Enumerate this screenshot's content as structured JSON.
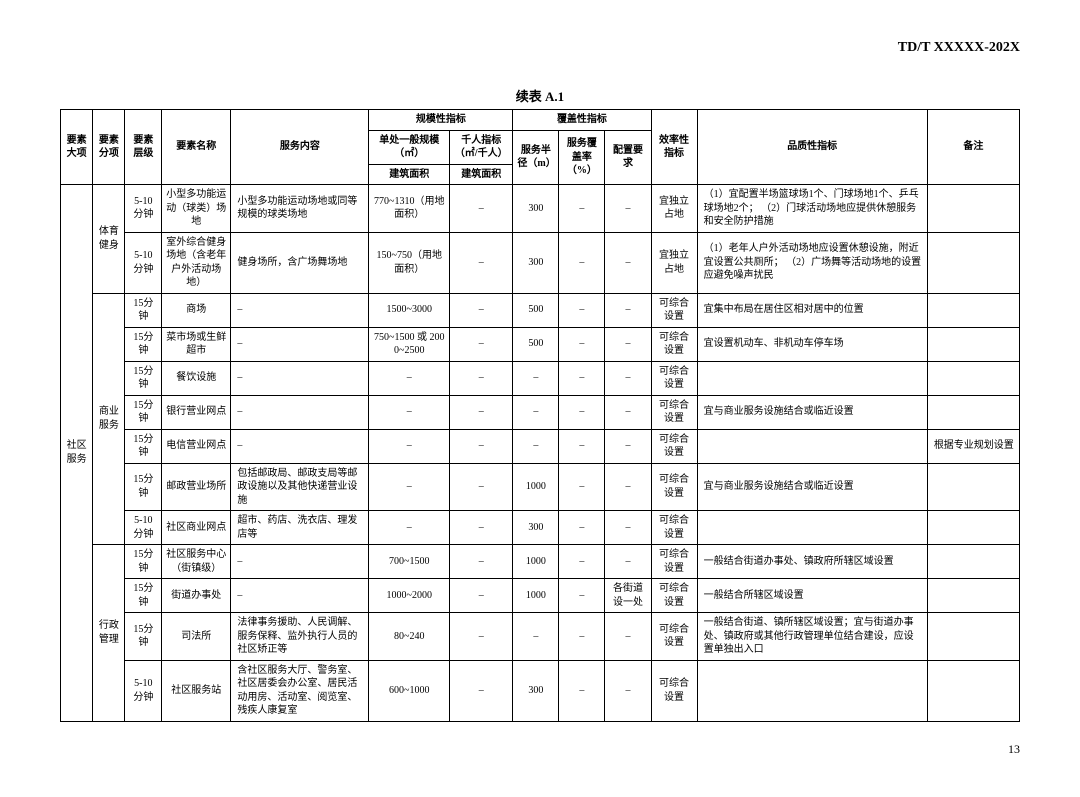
{
  "doc_code": "TD/T  XXXXX-202X",
  "table_title": "续表 A.1",
  "page_number": "13",
  "headers": {
    "major": "要素大项",
    "sub": "要素分项",
    "level": "要素层级",
    "name": "要素名称",
    "service": "服务内容",
    "scale_group": "规模性指标",
    "cover_group": "覆盖性指标",
    "scale": "单处一般规模（㎡）",
    "thou": "千人指标（㎡/千人）",
    "build1": "建筑面积",
    "build2": "建筑面积",
    "radius": "服务半径（m）",
    "rate": "服务覆盖率（%）",
    "config": "配置要求",
    "eff": "效率性指标",
    "qual": "品质性指标",
    "note": "备注"
  },
  "major_label": "社区服务",
  "groups": [
    {
      "sub": "体育健身",
      "rows": [
        {
          "level": "5-10分钟",
          "name": "小型多功能运动（球类）场地",
          "service": "小型多功能运动场地或同等规模的球类场地",
          "scale": "770~1310（用地面积）",
          "thou": "–",
          "radius": "300",
          "rate": "–",
          "config": "–",
          "eff": "宜独立占地",
          "qual": "（1）宜配置半场篮球场1个、门球场地1个、乒乓球场地2个；\n（2）门球活动场地应提供休憩服务和安全防护措施",
          "note": ""
        },
        {
          "level": "5-10分钟",
          "name": "室外综合健身场地（含老年户外活动场地）",
          "service": "健身场所，含广场舞场地",
          "scale": "150~750（用地面积）",
          "thou": "–",
          "radius": "300",
          "rate": "–",
          "config": "–",
          "eff": "宜独立占地",
          "qual": "（1）老年人户外活动场地应设置休憩设施，附近宜设置公共厕所；\n（2）广场舞等活动场地的设置应避免噪声扰民",
          "note": ""
        }
      ]
    },
    {
      "sub": "商业服务",
      "rows": [
        {
          "level": "15分钟",
          "name": "商场",
          "service": "–",
          "scale": "1500~3000",
          "thou": "–",
          "radius": "500",
          "rate": "–",
          "config": "–",
          "eff": "可综合设置",
          "qual": "宜集中布局在居住区相对居中的位置",
          "note": ""
        },
        {
          "level": "15分钟",
          "name": "菜市场或生鲜超市",
          "service": "–",
          "scale": "750~1500 或 2000~2500",
          "thou": "–",
          "radius": "500",
          "rate": "–",
          "config": "–",
          "eff": "可综合设置",
          "qual": "宜设置机动车、非机动车停车场",
          "note": ""
        },
        {
          "level": "15分钟",
          "name": "餐饮设施",
          "service": "–",
          "scale": "–",
          "thou": "–",
          "radius": "–",
          "rate": "–",
          "config": "–",
          "eff": "可综合设置",
          "qual": "",
          "note": ""
        },
        {
          "level": "15分钟",
          "name": "银行营业网点",
          "service": "–",
          "scale": "–",
          "thou": "–",
          "radius": "–",
          "rate": "–",
          "config": "–",
          "eff": "可综合设置",
          "qual": "宜与商业服务设施结合或临近设置",
          "note": ""
        },
        {
          "level": "15分钟",
          "name": "电信营业网点",
          "service": "–",
          "scale": "–",
          "thou": "–",
          "radius": "–",
          "rate": "–",
          "config": "–",
          "eff": "可综合设置",
          "qual": "",
          "note": "根据专业规划设置"
        },
        {
          "level": "15分钟",
          "name": "邮政营业场所",
          "service": "包括邮政局、邮政支局等邮政设施以及其他快递营业设施",
          "scale": "–",
          "thou": "–",
          "radius": "1000",
          "rate": "–",
          "config": "–",
          "eff": "可综合设置",
          "qual": "宜与商业服务设施结合或临近设置",
          "note": ""
        },
        {
          "level": "5-10分钟",
          "name": "社区商业网点",
          "service": "超市、药店、洗衣店、理发店等",
          "scale": "–",
          "thou": "–",
          "radius": "300",
          "rate": "–",
          "config": "–",
          "eff": "可综合设置",
          "qual": "",
          "note": ""
        }
      ]
    },
    {
      "sub": "行政管理",
      "rows": [
        {
          "level": "15分钟",
          "name": "社区服务中心（街镇级）",
          "service": "–",
          "scale": "700~1500",
          "thou": "–",
          "radius": "1000",
          "rate": "–",
          "config": "–",
          "eff": "可综合设置",
          "qual": "一般结合街道办事处、镇政府所辖区域设置",
          "note": ""
        },
        {
          "level": "15分钟",
          "name": "街道办事处",
          "service": "–",
          "scale": "1000~2000",
          "thou": "–",
          "radius": "1000",
          "rate": "–",
          "config": "各街道设一处",
          "eff": "可综合设置",
          "qual": "一般结合所辖区域设置",
          "note": ""
        },
        {
          "level": "15分钟",
          "name": "司法所",
          "service": "法律事务援助、人民调解、服务保释、监外执行人员的社区矫正等",
          "scale": "80~240",
          "thou": "–",
          "radius": "–",
          "rate": "–",
          "config": "–",
          "eff": "可综合设置",
          "qual": "一般结合街道、镇所辖区域设置；宜与街道办事处、镇政府或其他行政管理单位结合建设，应设置单独出入口",
          "note": ""
        },
        {
          "level": "5-10分钟",
          "name": "社区服务站",
          "service": "含社区服务大厅、警务室、社区居委会办公室、居民活动用房、活动室、阅览室、残疾人康复室",
          "scale": "600~1000",
          "thou": "–",
          "radius": "300",
          "rate": "–",
          "config": "–",
          "eff": "可综合设置",
          "qual": "",
          "note": ""
        }
      ]
    }
  ]
}
